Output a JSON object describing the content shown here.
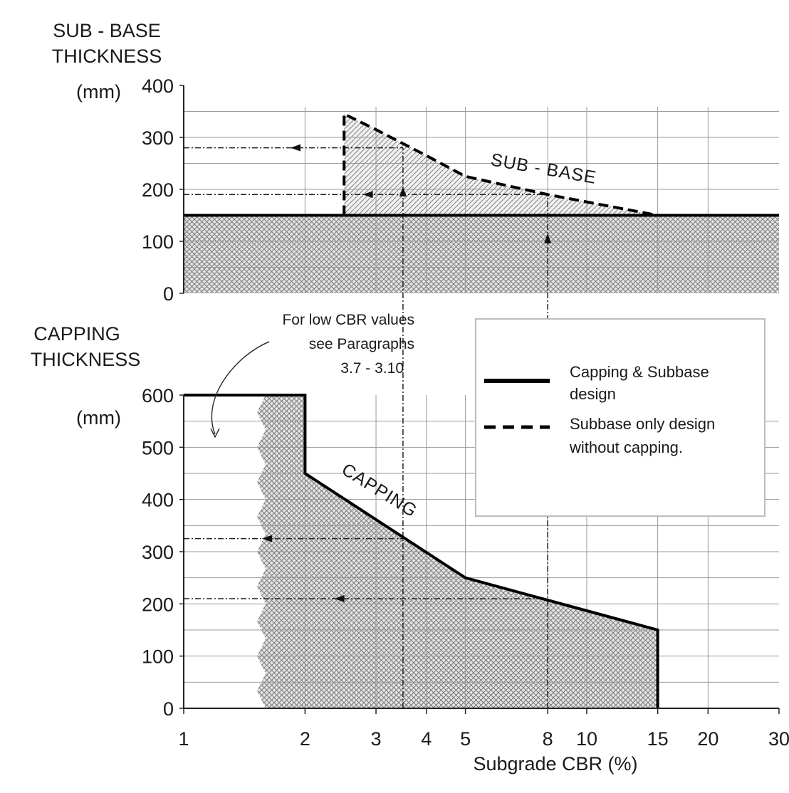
{
  "chart_data": {
    "type": "line",
    "xlabel": "Subgrade CBR (%)",
    "xscale": "log",
    "xlim": [
      1,
      30
    ],
    "xticks": [
      "1",
      "2",
      "3",
      "4",
      "5",
      "8",
      "10",
      "15",
      "20",
      "30"
    ],
    "xtick_values": [
      1,
      2,
      3,
      4,
      5,
      8,
      10,
      15,
      20,
      30
    ],
    "grid": true,
    "panels": [
      {
        "id": "subbase",
        "ylabel_lines": [
          "SUB - BASE",
          "THICKNESS",
          "(mm)"
        ],
        "ylim": [
          0,
          400
        ],
        "yticks": [
          "400",
          "300",
          "200",
          "100",
          "0"
        ],
        "ytick_values": [
          400,
          300,
          200,
          100,
          0
        ],
        "curve_label": "SUB - BASE",
        "series": [
          {
            "name": "Capping & Subbase design",
            "style": "solid",
            "x": [
              1,
              30
            ],
            "y": [
              150,
              150
            ]
          },
          {
            "name": "Subbase only design without capping.",
            "style": "dashed",
            "x": [
              2.5,
              2.5,
              3,
              4,
              5,
              8,
              15,
              30
            ],
            "y": [
              150,
              345,
              315,
              265,
              225,
              190,
              150,
              150
            ]
          }
        ],
        "read_lines": [
          {
            "cbr": 3.5,
            "thickness": 280
          },
          {
            "cbr": 8,
            "thickness": 190
          }
        ]
      },
      {
        "id": "capping",
        "ylabel_lines": [
          "CAPPING",
          "THICKNESS",
          "(mm)"
        ],
        "ylim": [
          0,
          600
        ],
        "yticks": [
          "600",
          "500",
          "400",
          "300",
          "200",
          "100",
          "0"
        ],
        "ytick_values": [
          600,
          500,
          400,
          300,
          200,
          100,
          0
        ],
        "curve_label": "CAPPING",
        "series": [
          {
            "name": "Capping & Subbase design",
            "style": "solid",
            "x": [
              1,
              2,
              2,
              5,
              15,
              15
            ],
            "y": [
              600,
              600,
              450,
              250,
              150,
              0
            ]
          }
        ],
        "read_lines": [
          {
            "cbr": 3.5,
            "thickness": 325
          },
          {
            "cbr": 8,
            "thickness": 210
          }
        ]
      }
    ],
    "legend": {
      "position": "right-middle",
      "entries": [
        {
          "label_lines": [
            "Capping & Subbase",
            "design"
          ],
          "style": "solid"
        },
        {
          "label_lines": [
            "Subbase only design",
            "without capping."
          ],
          "style": "dashed"
        }
      ]
    },
    "annotation": {
      "lines": [
        "For low CBR values",
        "see Paragraphs",
        "3.7 - 3.10"
      ]
    }
  }
}
